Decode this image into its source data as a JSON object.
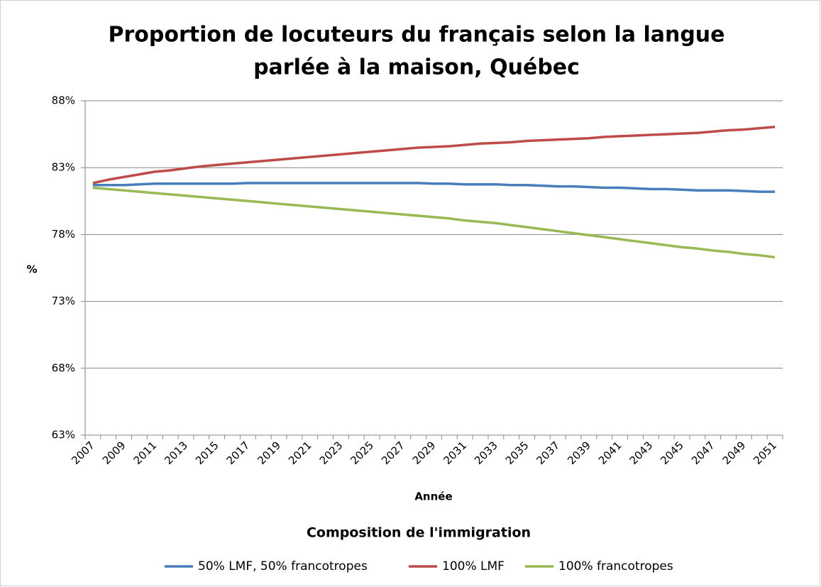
{
  "chart_data": {
    "type": "line",
    "title": [
      "Proportion de locuteurs du français selon la langue",
      "parlée à la maison, Québec"
    ],
    "y_label": "%",
    "x_label": "Année",
    "legend_title": "Composition de l'immigration",
    "legend": "bottom",
    "grid": true,
    "categories": [
      "2007",
      null,
      "2009",
      null,
      "2011",
      null,
      "2013",
      null,
      "2015",
      null,
      "2017",
      null,
      "2019",
      null,
      "2021",
      null,
      "2023",
      null,
      "2025",
      null,
      "2027",
      null,
      "2029",
      null,
      "2031",
      null,
      "2033",
      null,
      "2035",
      null,
      "2037",
      null,
      "2039",
      null,
      "2041",
      null,
      "2043",
      null,
      "2045",
      null,
      "2047",
      null,
      "2049",
      null,
      "2051"
    ],
    "ylim": [
      63,
      88
    ],
    "yticks": [
      {
        "value": 63,
        "label": "63%"
      },
      {
        "value": 68,
        "label": "68%"
      },
      {
        "value": 73,
        "label": "73%"
      },
      {
        "value": 78,
        "label": "78%"
      },
      {
        "value": 83,
        "label": "83%"
      },
      {
        "value": 88,
        "label": "88%"
      }
    ],
    "series": [
      {
        "name": "50% LMF, 50% francotropes",
        "color": "#4a7ebb",
        "values": [
          81.7,
          81.7,
          81.7,
          81.75,
          81.8,
          81.8,
          81.8,
          81.8,
          81.8,
          81.8,
          81.85,
          81.85,
          81.85,
          81.85,
          81.85,
          81.85,
          81.85,
          81.85,
          81.85,
          81.85,
          81.85,
          81.85,
          81.8,
          81.8,
          81.75,
          81.75,
          81.75,
          81.7,
          81.7,
          81.65,
          81.6,
          81.6,
          81.55,
          81.5,
          81.5,
          81.45,
          81.4,
          81.4,
          81.35,
          81.3,
          81.3,
          81.3,
          81.25,
          81.2,
          81.2
        ]
      },
      {
        "name": "100% LMF",
        "color": "#be4b48",
        "values": [
          81.85,
          82.1,
          82.3,
          82.5,
          82.7,
          82.8,
          82.95,
          83.1,
          83.2,
          83.3,
          83.4,
          83.5,
          83.6,
          83.7,
          83.8,
          83.9,
          84.0,
          84.1,
          84.2,
          84.3,
          84.4,
          84.5,
          84.55,
          84.6,
          84.7,
          84.8,
          84.85,
          84.9,
          85.0,
          85.05,
          85.1,
          85.15,
          85.2,
          85.3,
          85.35,
          85.4,
          85.45,
          85.5,
          85.55,
          85.6,
          85.7,
          85.8,
          85.85,
          85.95,
          86.05
        ]
      },
      {
        "name": "100% francotropes",
        "color": "#98b954",
        "values": [
          81.5,
          81.4,
          81.3,
          81.2,
          81.1,
          81.0,
          80.9,
          80.8,
          80.7,
          80.6,
          80.5,
          80.4,
          80.3,
          80.2,
          80.1,
          80.0,
          79.9,
          79.8,
          79.7,
          79.6,
          79.5,
          79.4,
          79.3,
          79.2,
          79.05,
          78.95,
          78.85,
          78.7,
          78.55,
          78.4,
          78.25,
          78.1,
          77.95,
          77.8,
          77.65,
          77.5,
          77.35,
          77.2,
          77.05,
          76.95,
          76.8,
          76.7,
          76.55,
          76.45,
          76.3
        ]
      }
    ]
  }
}
